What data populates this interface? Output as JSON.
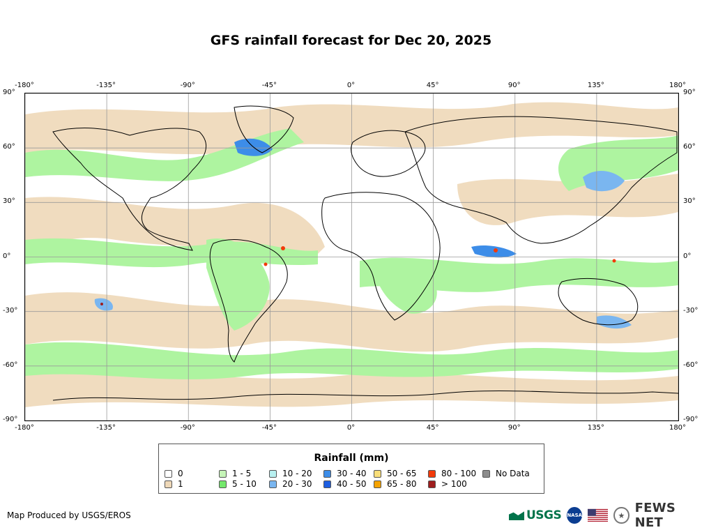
{
  "map": {
    "title": "GFS rainfall forecast for Dec 20, 2025",
    "projection": "Equirectangular",
    "longitude_ticks": [
      "-180°",
      "-135°",
      "-90°",
      "-45°",
      "0°",
      "45°",
      "90°",
      "135°",
      "180°"
    ],
    "latitude_ticks": [
      "90°",
      "60°",
      "30°",
      "0°",
      "-30°",
      "-60°",
      "-90°"
    ],
    "longitude_values": [
      -180,
      -135,
      -90,
      -45,
      0,
      45,
      90,
      135,
      180
    ],
    "latitude_values": [
      90,
      60,
      30,
      0,
      -30,
      -60,
      -90
    ],
    "colors": {
      "land_outline": "#000000",
      "grid": "#9a9a9a",
      "light_rain": "#eed8b8",
      "moderate": "#aef4a0"
    }
  },
  "legend": {
    "title": "Rainfall (mm)",
    "items": [
      {
        "label": "0",
        "color": "#ffffff"
      },
      {
        "label": "1",
        "color": "#eed8b8"
      },
      {
        "label": "1 - 5",
        "color": "#c6f5b8"
      },
      {
        "label": "5 - 10",
        "color": "#74e86c"
      },
      {
        "label": "10 - 20",
        "color": "#b8f0f0"
      },
      {
        "label": "20 - 30",
        "color": "#7ab6f0"
      },
      {
        "label": "30 - 40",
        "color": "#3d8de8"
      },
      {
        "label": "40 - 50",
        "color": "#1d5ee0"
      },
      {
        "label": "50 - 65",
        "color": "#f8de7a"
      },
      {
        "label": "65 - 80",
        "color": "#f5a300"
      },
      {
        "label": "80 - 100",
        "color": "#f23a0a"
      },
      {
        "label": "> 100",
        "color": "#9e1d1d"
      },
      {
        "label": "No Data",
        "color": "#8c8c8c"
      }
    ]
  },
  "credit": "Map Produced by USGS/EROS",
  "logos": {
    "usgs": "USGS",
    "nasa": "NASA",
    "fews": "FEWS NET"
  }
}
